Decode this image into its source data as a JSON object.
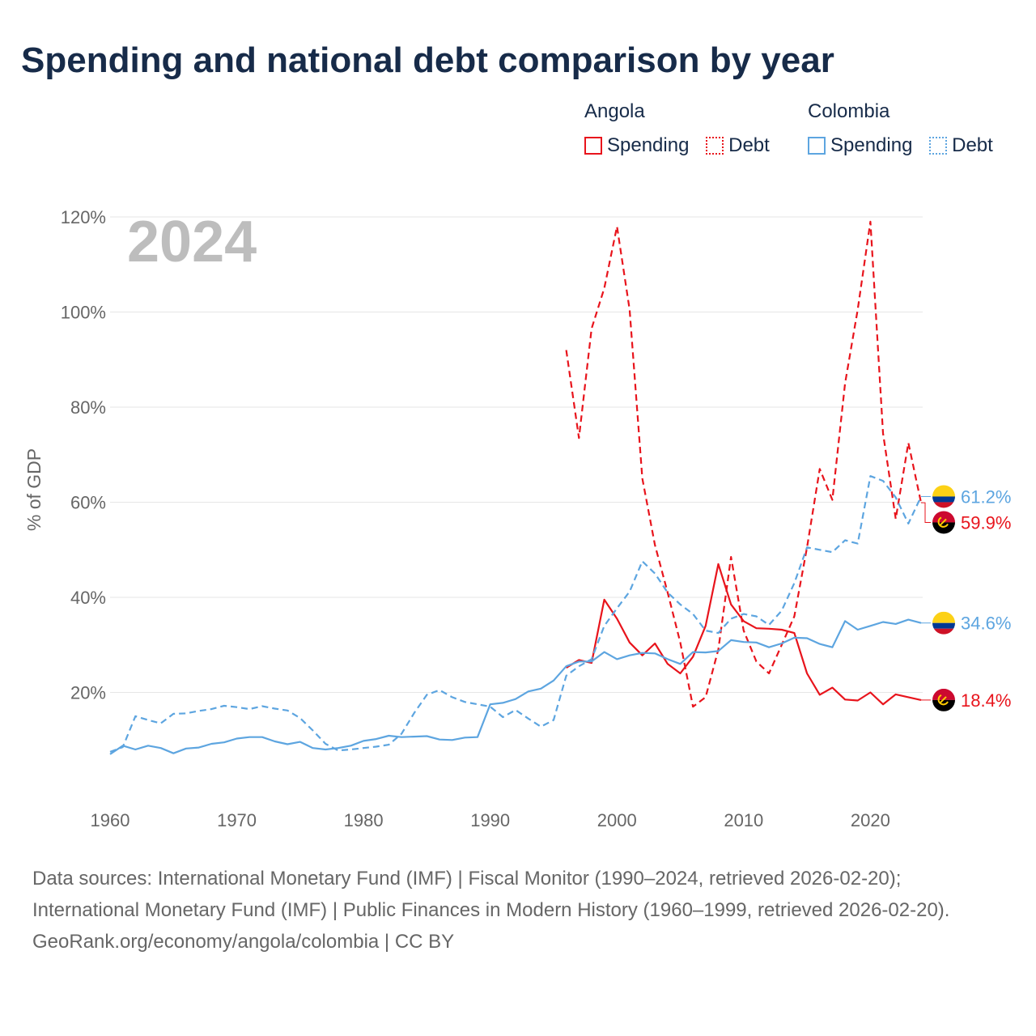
{
  "title": "Spending and national debt comparison by year",
  "legend": [
    {
      "country": "Angola",
      "spending_label": "Spending",
      "debt_label": "Debt",
      "color": "#e8141c"
    },
    {
      "country": "Colombia",
      "spending_label": "Spending",
      "debt_label": "Debt",
      "color": "#5da5e0"
    }
  ],
  "chart_data": {
    "type": "line",
    "year_label": "2024",
    "ylabel": "% of GDP",
    "xlim": [
      1960,
      2024
    ],
    "ylim": [
      0,
      120
    ],
    "x_ticks": [
      "1960",
      "1970",
      "1980",
      "1990",
      "2000",
      "2010",
      "2020"
    ],
    "y_ticks": [
      "20%",
      "40%",
      "60%",
      "80%",
      "100%",
      "120%"
    ],
    "series": [
      {
        "name": "Angola Spending",
        "country": "Angola",
        "kind": "spending",
        "color": "#e8141c",
        "dashed": false,
        "start": 1996,
        "values": [
          25.2,
          26.8,
          26.2,
          39.5,
          35.5,
          30.5,
          27.8,
          30.3,
          26.0,
          24.0,
          27.5,
          34.0,
          47.0,
          38.5,
          35.0,
          33.5,
          33.4,
          33.2,
          32.5,
          24.0,
          19.5,
          21.0,
          18.5,
          18.3,
          20.0,
          17.5,
          19.6,
          19.0,
          18.4
        ],
        "end_label": "18.4%"
      },
      {
        "name": "Angola Debt",
        "country": "Angola",
        "kind": "debt",
        "color": "#e8141c",
        "dashed": true,
        "start": 1996,
        "values": [
          92.0,
          73.5,
          96.5,
          105.0,
          118.0,
          100.5,
          65.0,
          51.0,
          41.0,
          30.5,
          17.0,
          19.0,
          29.0,
          48.5,
          33.0,
          26.5,
          24.0,
          30.0,
          36.0,
          50.5,
          67.0,
          60.5,
          85.0,
          100.5,
          119.0,
          74.5,
          56.5,
          72.5,
          59.9
        ],
        "end_label": "59.9%"
      },
      {
        "name": "Colombia Spending",
        "country": "Colombia",
        "kind": "spending",
        "color": "#5da5e0",
        "dashed": false,
        "start": 1960,
        "values": [
          7.0,
          8.8,
          8.0,
          8.8,
          8.3,
          7.2,
          8.2,
          8.4,
          9.2,
          9.5,
          10.3,
          10.6,
          10.6,
          9.7,
          9.1,
          9.6,
          8.3,
          8.0,
          8.3,
          8.8,
          9.8,
          10.2,
          10.9,
          10.6,
          10.7,
          10.8,
          10.1,
          10.0,
          10.5,
          10.6,
          17.5,
          17.8,
          18.6,
          20.2,
          20.8,
          22.5,
          25.5,
          26.5,
          26.5,
          28.5,
          27.0,
          27.8,
          28.3,
          28.2,
          27.0,
          26.0,
          28.5,
          28.4,
          28.7,
          31.0,
          30.6,
          30.5,
          29.5,
          30.3,
          31.5,
          31.4,
          30.2,
          29.5,
          35.0,
          33.2,
          34.0,
          34.8,
          34.4,
          35.3,
          34.6
        ],
        "end_label": "34.6%"
      },
      {
        "name": "Colombia Debt",
        "country": "Colombia",
        "kind": "debt",
        "color": "#5da5e0",
        "dashed": true,
        "start": 1960,
        "values": [
          7.5,
          8.5,
          15.0,
          14.2,
          13.5,
          15.5,
          15.6,
          16.1,
          16.5,
          17.2,
          16.9,
          16.5,
          17.1,
          16.6,
          16.2,
          14.6,
          12.0,
          9.2,
          7.8,
          8.0,
          8.3,
          8.6,
          9.0,
          11.3,
          15.7,
          19.5,
          20.5,
          19.0,
          18.0,
          17.5,
          17.0,
          14.8,
          16.3,
          14.5,
          12.8,
          14.2,
          23.5,
          25.5,
          27.0,
          34.0,
          37.7,
          41.2,
          47.6,
          45.0,
          41.0,
          38.5,
          36.5,
          33.0,
          32.5,
          35.5,
          36.5,
          36.0,
          34.2,
          37.2,
          43.0,
          50.5,
          50.0,
          49.5,
          52.0,
          51.3,
          65.5,
          64.5,
          61.0,
          55.5,
          61.2
        ],
        "end_label": "61.2%"
      }
    ]
  },
  "footer": {
    "sources": "Data sources: International Monetary Fund (IMF) | Fiscal Monitor (1990–2024, retrieved 2026-02-20); International Monetary Fund (IMF) | Public Finances in Modern History (1960–1999, retrieved 2026-02-20).",
    "credit": "GeoRank.org/economy/angola/colombia | CC BY"
  }
}
